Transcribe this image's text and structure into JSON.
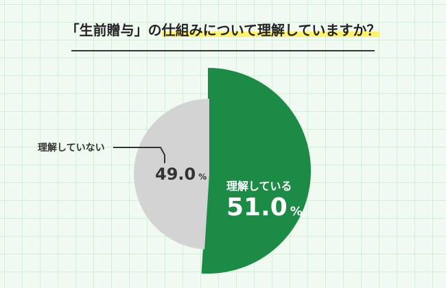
{
  "chart_data": {
    "type": "pie",
    "title_prefix": "「生前贈与」の",
    "title_highlight": "仕組みについて理解していますか？",
    "categories": [
      "理解している",
      "理解していない"
    ],
    "values": [
      51.0,
      49.0
    ],
    "value_labels": [
      "51.0",
      "49.0"
    ],
    "unit": "%",
    "colors": [
      "#1b8b45",
      "#d3d3d3"
    ],
    "legend": "none"
  }
}
